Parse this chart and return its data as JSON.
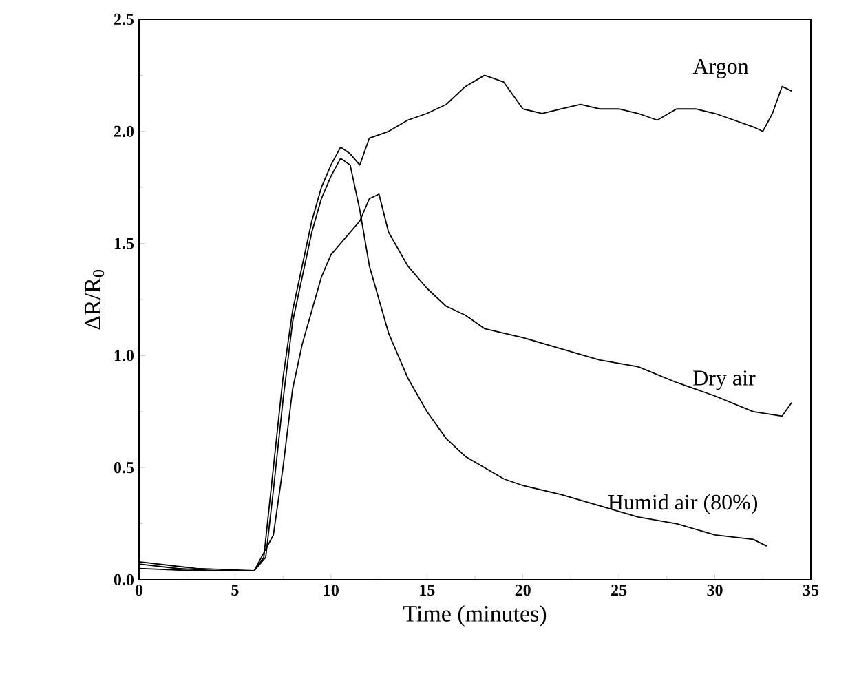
{
  "chart_data": {
    "type": "line",
    "xlabel": "Time (minutes)",
    "ylabel": "ΔR/R$_{0}$",
    "xlim": [
      0,
      35
    ],
    "ylim": [
      0,
      2.5
    ],
    "xticks": [
      0,
      5,
      10,
      15,
      20,
      25,
      30,
      35
    ],
    "yticks": [
      {
        "value": 0,
        "label": "0.0"
      },
      0.5,
      {
        "value": 1,
        "label": "1.0"
      },
      1.5,
      {
        "value": 2,
        "label": "2.0"
      },
      2.5
    ],
    "grid": false,
    "legend": false,
    "marker": "none",
    "line_style": "solid",
    "series": [
      {
        "name": "Argon",
        "color": "#000000",
        "x": [
          0,
          2,
          4,
          6,
          6.5,
          7,
          7.5,
          8,
          8.5,
          9,
          9.5,
          10,
          10.5,
          11,
          11.5,
          12,
          13,
          14,
          15,
          16,
          17,
          18,
          19,
          20,
          21,
          22,
          23,
          24,
          25,
          26,
          27,
          28,
          29,
          30,
          31,
          32,
          32.5,
          33,
          33.5,
          34
        ],
        "values": [
          0.07,
          0.05,
          0.04,
          0.04,
          0.1,
          0.5,
          0.9,
          1.2,
          1.4,
          1.6,
          1.75,
          1.85,
          1.93,
          1.9,
          1.85,
          1.97,
          2.0,
          2.05,
          2.08,
          2.12,
          2.2,
          2.25,
          2.22,
          2.1,
          2.08,
          2.1,
          2.12,
          2.1,
          2.1,
          2.08,
          2.05,
          2.1,
          2.1,
          2.08,
          2.05,
          2.02,
          2.0,
          2.08,
          2.2,
          2.18
        ]
      },
      {
        "name": "Dry air",
        "color": "#000000",
        "x": [
          0,
          3,
          6,
          7,
          7.5,
          8,
          8.5,
          9,
          9.5,
          10,
          11,
          11.5,
          12,
          12.5,
          13,
          14,
          15,
          16,
          17,
          18,
          20,
          22,
          24,
          26,
          28,
          30,
          32,
          33.5,
          34
        ],
        "values": [
          0.05,
          0.04,
          0.04,
          0.2,
          0.5,
          0.85,
          1.05,
          1.2,
          1.35,
          1.45,
          1.55,
          1.6,
          1.7,
          1.72,
          1.55,
          1.4,
          1.3,
          1.22,
          1.18,
          1.12,
          1.08,
          1.03,
          0.98,
          0.95,
          0.88,
          0.82,
          0.75,
          0.73,
          0.79
        ]
      },
      {
        "name": "Humid air (80%)",
        "color": "#000000",
        "x": [
          0,
          3,
          6,
          6.6,
          7,
          7.5,
          8,
          8.5,
          9,
          9.5,
          10,
          10.5,
          11,
          11.5,
          12,
          13,
          14,
          15,
          16,
          17,
          18,
          19,
          20,
          22,
          24,
          26,
          28,
          30,
          32,
          32.7
        ],
        "values": [
          0.08,
          0.05,
          0.04,
          0.1,
          0.4,
          0.8,
          1.15,
          1.35,
          1.55,
          1.7,
          1.8,
          1.88,
          1.85,
          1.65,
          1.4,
          1.1,
          0.9,
          0.75,
          0.63,
          0.55,
          0.5,
          0.45,
          0.42,
          0.38,
          0.33,
          0.28,
          0.25,
          0.2,
          0.18,
          0.15
        ]
      }
    ]
  }
}
